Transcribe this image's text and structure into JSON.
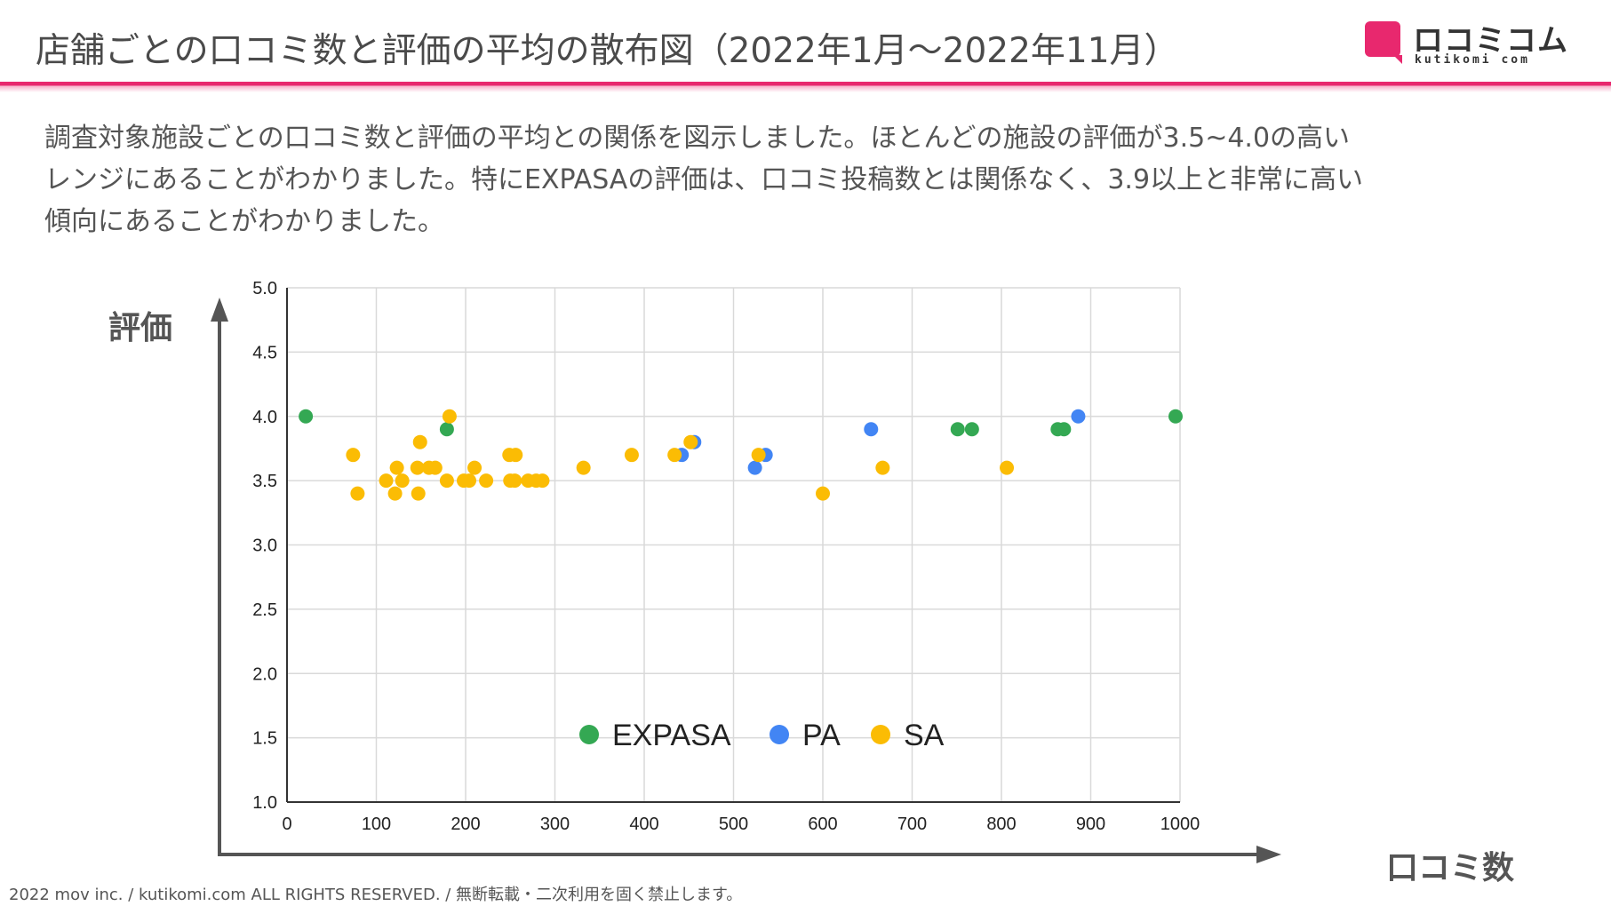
{
  "header": {
    "title": "店舗ごとの口コミ数と評価の平均の散布図（2022年1月〜2022年11月）",
    "logo_name": "ロコミコム",
    "logo_domain": "kutikomi com"
  },
  "description": {
    "line1": "調査対象施設ごとの口コミ数と評価の平均との関係を図示しました。ほとんどの施設の評価が3.5~4.0の高い",
    "line2": "レンジにあることがわかりました。特にEXPASAの評価は、口コミ投稿数とは関係なく、3.9以上と非常に高い",
    "line3": "傾向にあることがわかりました。"
  },
  "axis_titles": {
    "y": "評価",
    "x": "口コミ数"
  },
  "footer": "2022 mov inc. / kutikomi.com ALL RIGHTS RESERVED. / 無断転載・二次利用を固く禁止します。",
  "colors": {
    "accent": "#e8286e",
    "EXPASA": "#34a853",
    "PA": "#4285f4",
    "SA": "#fbbc04",
    "grid": "#d9d9d9",
    "axis": "#555555"
  },
  "chart_data": {
    "type": "scatter",
    "title": "",
    "xlabel": "口コミ数",
    "ylabel": "評価",
    "xlim": [
      0,
      1000
    ],
    "ylim": [
      1.0,
      5.0
    ],
    "x_ticks": [
      "0",
      "100",
      "200",
      "300",
      "400",
      "500",
      "600",
      "700",
      "800",
      "900",
      "1000"
    ],
    "y_ticks": [
      "1.0",
      "1.5",
      "2.0",
      "2.5",
      "3.0",
      "3.5",
      "4.0",
      "4.5",
      "5.0"
    ],
    "grid": true,
    "legend_position": "bottom-center",
    "series": [
      {
        "name": "EXPASA",
        "points": [
          [
            21,
            4.0
          ],
          [
            179,
            3.9
          ],
          [
            751,
            3.9
          ],
          [
            767,
            3.9
          ],
          [
            863,
            3.9
          ],
          [
            870,
            3.9
          ],
          [
            995,
            4.0
          ]
        ]
      },
      {
        "name": "PA",
        "points": [
          [
            442,
            3.7
          ],
          [
            456,
            3.8
          ],
          [
            524,
            3.6
          ],
          [
            536,
            3.7
          ],
          [
            654,
            3.9
          ],
          [
            886,
            4.0
          ]
        ]
      },
      {
        "name": "SA",
        "points": [
          [
            74,
            3.7
          ],
          [
            79,
            3.4
          ],
          [
            111,
            3.5
          ],
          [
            121,
            3.4
          ],
          [
            123,
            3.6
          ],
          [
            129,
            3.5
          ],
          [
            146,
            3.6
          ],
          [
            147,
            3.4
          ],
          [
            149,
            3.8
          ],
          [
            159,
            3.6
          ],
          [
            166,
            3.6
          ],
          [
            179,
            3.5
          ],
          [
            182,
            4.0
          ],
          [
            198,
            3.5
          ],
          [
            204,
            3.5
          ],
          [
            210,
            3.6
          ],
          [
            223,
            3.5
          ],
          [
            249,
            3.7
          ],
          [
            250,
            3.5
          ],
          [
            256,
            3.7
          ],
          [
            255,
            3.5
          ],
          [
            270,
            3.5
          ],
          [
            279,
            3.5
          ],
          [
            286,
            3.5
          ],
          [
            332,
            3.6
          ],
          [
            386,
            3.7
          ],
          [
            434,
            3.7
          ],
          [
            452,
            3.8
          ],
          [
            528,
            3.7
          ],
          [
            600,
            3.4
          ],
          [
            667,
            3.6
          ],
          [
            806,
            3.6
          ]
        ]
      }
    ]
  }
}
